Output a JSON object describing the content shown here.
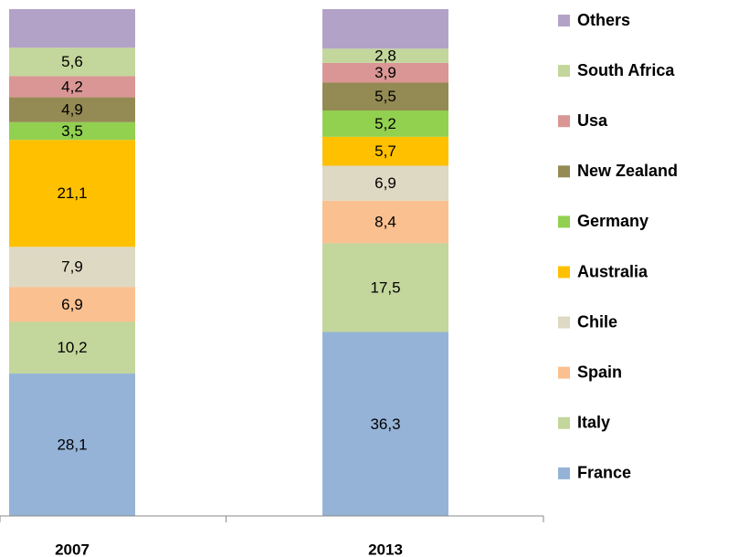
{
  "chart_data": {
    "type": "stacked_bar",
    "categories": [
      "2007",
      "2013"
    ],
    "ylim": [
      0,
      100
    ],
    "series": [
      {
        "name": "France",
        "color": "#95b3d7",
        "values": [
          28.1,
          36.3
        ],
        "value_labels": [
          "28,1",
          "36,3"
        ]
      },
      {
        "name": "Italy",
        "color": "#c3d69b",
        "values": [
          10.2,
          17.5
        ],
        "value_labels": [
          "10,2",
          "17,5"
        ]
      },
      {
        "name": "Spain",
        "color": "#fac090",
        "values": [
          6.9,
          8.4
        ],
        "value_labels": [
          "6,9",
          "8,4"
        ]
      },
      {
        "name": "Chile",
        "color": "#ddd9c3",
        "values": [
          7.9,
          6.9
        ],
        "value_labels": [
          "7,9",
          "6,9"
        ]
      },
      {
        "name": "Australia",
        "color": "#ffc000",
        "values": [
          21.1,
          5.7
        ],
        "value_labels": [
          "21,1",
          "5,7"
        ]
      },
      {
        "name": "Germany",
        "color": "#92d050",
        "values": [
          3.5,
          5.2
        ],
        "value_labels": [
          "3,5",
          "5,2"
        ]
      },
      {
        "name": "New Zealand",
        "color": "#948a54",
        "values": [
          4.9,
          5.5
        ],
        "value_labels": [
          "4,9",
          "5,5"
        ]
      },
      {
        "name": "Usa",
        "color": "#d99694",
        "values": [
          4.2,
          3.9
        ],
        "value_labels": [
          "4,2",
          "3,9"
        ]
      },
      {
        "name": "South Africa",
        "color": "#c3d69b",
        "values": [
          5.6,
          2.8
        ],
        "value_labels": [
          "5,6",
          "2,8"
        ]
      },
      {
        "name": "Others",
        "color": "#b3a2c7",
        "values": [
          7.6,
          7.8
        ],
        "value_labels": [
          null,
          null
        ]
      }
    ],
    "legend": "right"
  }
}
